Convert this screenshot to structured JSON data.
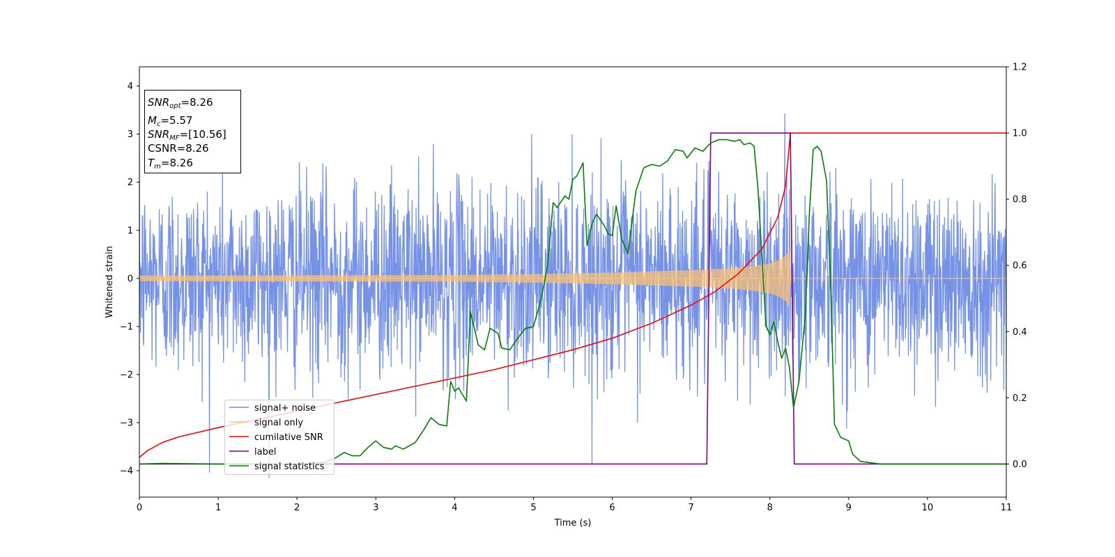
{
  "chart_data": {
    "type": "line",
    "xlabel": "Time (s)",
    "ylabel": "Whitened strain",
    "xlim": [
      0,
      11
    ],
    "ylim": [
      -4.55,
      4.4
    ],
    "y2lim": [
      -0.1,
      1.2
    ],
    "grid": false,
    "x_ticks": [
      "0",
      "1",
      "2",
      "3",
      "4",
      "5",
      "6",
      "7",
      "8",
      "9",
      "10",
      "11"
    ],
    "y_ticks": [
      "−4",
      "−3",
      "−2",
      "−1",
      "0",
      "1",
      "2",
      "3",
      "4"
    ],
    "y2_ticks": [
      "0.0",
      "0.2",
      "0.4",
      "0.6",
      "0.8",
      "1.0",
      "1.2"
    ],
    "legend_position": "lower-left",
    "annotation": {
      "snr_opt": "=8.26",
      "mc": "=5.57",
      "snr_mf": "=[10.56]",
      "csnr": "CSNR=8.26",
      "tm": "=8.26"
    },
    "series": [
      {
        "name": "signal+ noise",
        "color": "#6f8ce6",
        "axis": "left",
        "kind": "noise",
        "sigma": 1.0,
        "x_range": [
          0,
          11
        ],
        "merger_time": 8.26,
        "y_min": -4.15,
        "y_max": 4.0
      },
      {
        "name": "signal only",
        "color": "#ffc26e",
        "axis": "left",
        "kind": "chirp",
        "envelope": [
          [
            0,
            0.06
          ],
          [
            4,
            0.07
          ],
          [
            5,
            0.09
          ],
          [
            6,
            0.12
          ],
          [
            7,
            0.17
          ],
          [
            7.5,
            0.21
          ],
          [
            7.8,
            0.26
          ],
          [
            8.0,
            0.31
          ],
          [
            8.1,
            0.37
          ],
          [
            8.2,
            0.47
          ],
          [
            8.25,
            0.62
          ],
          [
            8.27,
            0.0
          ],
          [
            11,
            0.0
          ]
        ]
      },
      {
        "name": "cumilative SNR",
        "color": "#ff0000",
        "axis": "right",
        "points": [
          [
            0,
            0.02
          ],
          [
            0.1,
            0.04
          ],
          [
            0.3,
            0.066
          ],
          [
            0.5,
            0.082
          ],
          [
            1.0,
            0.11
          ],
          [
            1.5,
            0.135
          ],
          [
            2.0,
            0.16
          ],
          [
            2.5,
            0.185
          ],
          [
            3.0,
            0.21
          ],
          [
            3.5,
            0.235
          ],
          [
            4.0,
            0.26
          ],
          [
            4.5,
            0.285
          ],
          [
            5.0,
            0.315
          ],
          [
            5.5,
            0.345
          ],
          [
            6.0,
            0.38
          ],
          [
            6.5,
            0.425
          ],
          [
            7.0,
            0.48
          ],
          [
            7.3,
            0.52
          ],
          [
            7.6,
            0.575
          ],
          [
            7.9,
            0.65
          ],
          [
            8.1,
            0.745
          ],
          [
            8.2,
            0.84
          ],
          [
            8.26,
            1.0
          ],
          [
            11,
            1.0
          ]
        ]
      },
      {
        "name": "label",
        "color": "#800080",
        "axis": "right",
        "points": [
          [
            0,
            0.0
          ],
          [
            7.2,
            0.0
          ],
          [
            7.25,
            1.0
          ],
          [
            8.26,
            1.0
          ],
          [
            8.31,
            0.0
          ],
          [
            11,
            0.0
          ]
        ]
      },
      {
        "name": "signal statistics",
        "color": "#008000",
        "axis": "right",
        "points": [
          [
            0,
            0.0
          ],
          [
            0.3,
            0.002
          ],
          [
            1.0,
            0.0
          ],
          [
            2.0,
            0.0
          ],
          [
            2.35,
            0.005
          ],
          [
            2.5,
            0.02
          ],
          [
            2.6,
            0.035
          ],
          [
            2.7,
            0.025
          ],
          [
            2.8,
            0.025
          ],
          [
            2.9,
            0.05
          ],
          [
            3.0,
            0.07
          ],
          [
            3.1,
            0.05
          ],
          [
            3.2,
            0.045
          ],
          [
            3.25,
            0.055
          ],
          [
            3.35,
            0.045
          ],
          [
            3.5,
            0.065
          ],
          [
            3.6,
            0.1
          ],
          [
            3.7,
            0.14
          ],
          [
            3.8,
            0.12
          ],
          [
            3.9,
            0.115
          ],
          [
            3.95,
            0.25
          ],
          [
            4.0,
            0.22
          ],
          [
            4.05,
            0.23
          ],
          [
            4.15,
            0.19
          ],
          [
            4.2,
            0.46
          ],
          [
            4.3,
            0.36
          ],
          [
            4.38,
            0.345
          ],
          [
            4.45,
            0.41
          ],
          [
            4.55,
            0.395
          ],
          [
            4.6,
            0.35
          ],
          [
            4.7,
            0.345
          ],
          [
            4.8,
            0.38
          ],
          [
            4.9,
            0.41
          ],
          [
            5.0,
            0.415
          ],
          [
            5.1,
            0.5
          ],
          [
            5.18,
            0.6
          ],
          [
            5.25,
            0.79
          ],
          [
            5.3,
            0.775
          ],
          [
            5.4,
            0.81
          ],
          [
            5.45,
            0.8
          ],
          [
            5.5,
            0.86
          ],
          [
            5.55,
            0.87
          ],
          [
            5.63,
            0.91
          ],
          [
            5.68,
            0.66
          ],
          [
            5.75,
            0.73
          ],
          [
            5.8,
            0.755
          ],
          [
            5.9,
            0.72
          ],
          [
            5.95,
            0.695
          ],
          [
            6.0,
            0.69
          ],
          [
            6.05,
            0.78
          ],
          [
            6.12,
            0.68
          ],
          [
            6.2,
            0.635
          ],
          [
            6.3,
            0.825
          ],
          [
            6.4,
            0.895
          ],
          [
            6.5,
            0.905
          ],
          [
            6.6,
            0.9
          ],
          [
            6.7,
            0.915
          ],
          [
            6.8,
            0.95
          ],
          [
            6.9,
            0.945
          ],
          [
            6.95,
            0.925
          ],
          [
            7.05,
            0.955
          ],
          [
            7.15,
            0.945
          ],
          [
            7.25,
            0.97
          ],
          [
            7.35,
            0.98
          ],
          [
            7.45,
            0.98
          ],
          [
            7.55,
            0.975
          ],
          [
            7.62,
            0.98
          ],
          [
            7.67,
            0.965
          ],
          [
            7.75,
            0.97
          ],
          [
            7.8,
            0.96
          ],
          [
            7.85,
            0.83
          ],
          [
            7.95,
            0.42
          ],
          [
            8.0,
            0.39
          ],
          [
            8.05,
            0.43
          ],
          [
            8.1,
            0.37
          ],
          [
            8.15,
            0.32
          ],
          [
            8.2,
            0.35
          ],
          [
            8.25,
            0.29
          ],
          [
            8.3,
            0.17
          ],
          [
            8.37,
            0.25
          ],
          [
            8.45,
            0.45
          ],
          [
            8.5,
            0.75
          ],
          [
            8.55,
            0.95
          ],
          [
            8.6,
            0.96
          ],
          [
            8.65,
            0.945
          ],
          [
            8.72,
            0.855
          ],
          [
            8.77,
            0.55
          ],
          [
            8.82,
            0.12
          ],
          [
            8.9,
            0.08
          ],
          [
            9.0,
            0.07
          ],
          [
            9.05,
            0.03
          ],
          [
            9.15,
            0.008
          ],
          [
            9.4,
            0.0
          ],
          [
            11,
            0.0
          ]
        ]
      }
    ]
  }
}
